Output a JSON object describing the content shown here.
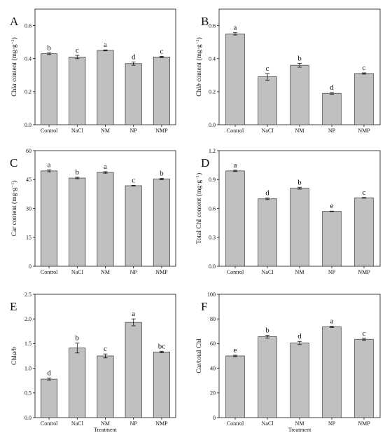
{
  "chart_data": [
    {
      "type": "bar",
      "panel": "A",
      "ylabel_parts": [
        {
          "t": "Chl"
        },
        {
          "t": "a",
          "i": true
        },
        {
          "t": " content (mg·g"
        },
        {
          "t": "−1",
          "s": true
        },
        {
          "t": ")"
        }
      ],
      "xlabel": "",
      "categories": [
        "Control",
        "NaCl",
        "NM",
        "NP",
        "NMP"
      ],
      "values": [
        0.43,
        0.41,
        0.45,
        0.37,
        0.41
      ],
      "errors": [
        0.005,
        0.01,
        0.003,
        0.01,
        0.004
      ],
      "letters": [
        "b",
        "c",
        "a",
        "d",
        "c"
      ],
      "ylim": [
        0,
        0.7
      ],
      "yticks": [
        0.0,
        0.2,
        0.4,
        0.6
      ],
      "tick_decimals": 1
    },
    {
      "type": "bar",
      "panel": "B",
      "ylabel_parts": [
        {
          "t": "Chl"
        },
        {
          "t": "b",
          "i": true
        },
        {
          "t": " content (mg·g"
        },
        {
          "t": "−1",
          "s": true
        },
        {
          "t": ")"
        }
      ],
      "xlabel": "",
      "categories": [
        "Control",
        "NaCl",
        "NM",
        "NP",
        "NMP"
      ],
      "values": [
        0.55,
        0.29,
        0.36,
        0.19,
        0.31
      ],
      "errors": [
        0.007,
        0.02,
        0.012,
        0.005,
        0.004
      ],
      "letters": [
        "a",
        "c",
        "b",
        "d",
        "c"
      ],
      "ylim": [
        0,
        0.7
      ],
      "yticks": [
        0.0,
        0.2,
        0.4,
        0.6
      ],
      "tick_decimals": 1
    },
    {
      "type": "bar",
      "panel": "C",
      "ylabel_parts": [
        {
          "t": "Car content (mg·g"
        },
        {
          "t": "−1",
          "s": true
        },
        {
          "t": ")"
        }
      ],
      "xlabel": "",
      "categories": [
        "Control",
        "NaCl",
        "NM",
        "NP",
        "NMP"
      ],
      "values": [
        49.5,
        45.8,
        48.7,
        41.8,
        45.3
      ],
      "errors": [
        0.5,
        0.4,
        0.4,
        0.2,
        0.4
      ],
      "letters": [
        "a",
        "b",
        "a",
        "c",
        "b"
      ],
      "ylim": [
        0,
        60
      ],
      "yticks": [
        0,
        15,
        30,
        45,
        60
      ],
      "tick_decimals": 0
    },
    {
      "type": "bar",
      "panel": "D",
      "ylabel_parts": [
        {
          "t": "Total Chl content (mg·g"
        },
        {
          "t": "−1",
          "s": true
        },
        {
          "t": ")"
        }
      ],
      "xlabel": "",
      "categories": [
        "Control",
        "NaCl",
        "NM",
        "NP",
        "NMP"
      ],
      "values": [
        0.99,
        0.7,
        0.81,
        0.57,
        0.71
      ],
      "errors": [
        0.007,
        0.008,
        0.01,
        0.003,
        0.004
      ],
      "letters": [
        "a",
        "d",
        "b",
        "e",
        "c"
      ],
      "ylim": [
        0,
        1.2
      ],
      "yticks": [
        0.0,
        0.3,
        0.6,
        0.9,
        1.2
      ],
      "tick_decimals": 1
    },
    {
      "type": "bar",
      "panel": "E",
      "ylabel_parts": [
        {
          "t": "Chl"
        },
        {
          "t": "a/b",
          "i": true
        }
      ],
      "xlabel": "Treatment",
      "categories": [
        "Control",
        "NaCl",
        "NM",
        "NP",
        "NMP"
      ],
      "values": [
        0.78,
        1.41,
        1.25,
        1.93,
        1.33
      ],
      "errors": [
        0.02,
        0.1,
        0.04,
        0.07,
        0.015
      ],
      "letters": [
        "d",
        "b",
        "c",
        "a",
        "bc"
      ],
      "ylim": [
        0,
        2.5
      ],
      "yticks": [
        0.0,
        0.5,
        1.0,
        1.5,
        2.0,
        2.5
      ],
      "tick_decimals": 1
    },
    {
      "type": "bar",
      "panel": "F",
      "ylabel_parts": [
        {
          "t": "Car/total Chl"
        }
      ],
      "xlabel": "Treatment",
      "categories": [
        "Control",
        "NaCl",
        "NM",
        "NP",
        "NMP"
      ],
      "values": [
        50.0,
        65.6,
        60.5,
        73.6,
        63.5
      ],
      "errors": [
        0.6,
        1.2,
        1.3,
        0.5,
        0.8
      ],
      "letters": [
        "e",
        "b",
        "d",
        "a",
        "c"
      ],
      "ylim": [
        0,
        100
      ],
      "yticks": [
        0,
        20,
        40,
        60,
        80,
        100
      ],
      "tick_decimals": 0
    }
  ],
  "style": {
    "bar_fill": "#c0c0c0",
    "bar_stroke": "#333333",
    "axis_color": "#111111"
  }
}
